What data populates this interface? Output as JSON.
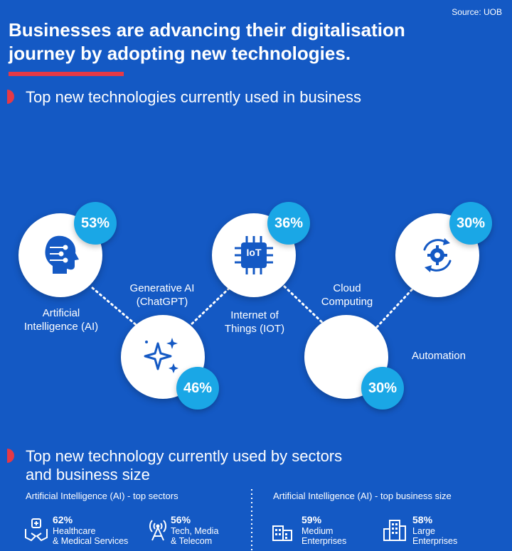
{
  "source": "Source: UOB",
  "title": {
    "line1": "Businesses are advancing their digitalisation",
    "line2": "journey by adopting new technologies."
  },
  "section1": {
    "title": "Top new technologies currently used in business",
    "technologies": [
      {
        "label_line1": "Artificial",
        "label_line2": "Intelligence (AI)",
        "percent": "53%",
        "icon": "ai-head-icon"
      },
      {
        "label_line1": "Generative AI",
        "label_line2": "(ChatGPT)",
        "percent": "46%",
        "icon": "sparkles-icon"
      },
      {
        "label_line1": "Internet of",
        "label_line2": "Things (IOT)",
        "percent": "36%",
        "icon": "iot-chip-icon",
        "icon_text": "IoT"
      },
      {
        "label_line1": "Cloud",
        "label_line2": "Computing",
        "percent": "30%",
        "icon": "cloud-icon"
      },
      {
        "label_line1": "Automation",
        "label_line2": "",
        "percent": "30%",
        "icon": "gear-cycle-icon"
      }
    ]
  },
  "section2": {
    "title_line1": "Top new technology currently used by sectors",
    "title_line2": "and business size",
    "left": {
      "heading": "Artificial Intelligence (AI) - top sectors",
      "items": [
        {
          "percent": "62%",
          "line1": "Healthcare",
          "line2": "& Medical Services",
          "icon": "healthcare-hands-icon"
        },
        {
          "percent": "56%",
          "line1": "Tech, Media",
          "line2": "& Telecom",
          "icon": "antenna-icon"
        }
      ]
    },
    "right": {
      "heading": "Artificial Intelligence (AI) - top business size",
      "items": [
        {
          "percent": "59%",
          "line1": "Medium",
          "line2": "Enterprises",
          "icon": "medium-building-icon"
        },
        {
          "percent": "58%",
          "line1": "Large",
          "line2": "Enterprises",
          "icon": "large-building-icon"
        }
      ]
    }
  },
  "colors": {
    "background": "#1459c4",
    "accent_red": "#e63946",
    "badge_blue": "#1aa7e6",
    "icon_blue": "#1459c4"
  }
}
